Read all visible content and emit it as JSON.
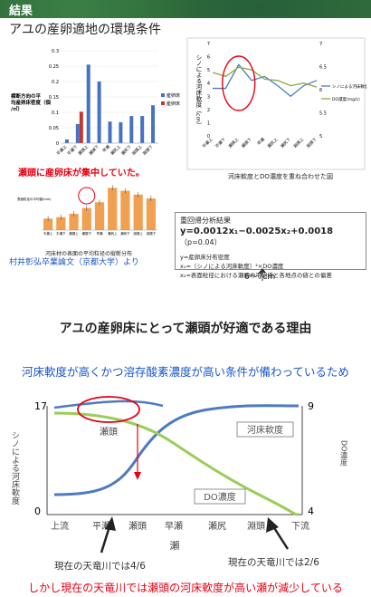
{
  "header": {
    "title": "結果"
  },
  "section1": {
    "title": "アユの産卵適地の環境条件"
  },
  "chart_data": [
    {
      "type": "bar",
      "ylabel": "横断方向の平均産卵床密度（個/㎡）",
      "ylim": [
        0,
        0.3
      ],
      "yticks": [
        "0",
        "0.05",
        "0.1",
        "0.15",
        "0.2",
        "0.25",
        "0.3"
      ],
      "categories": [
        "平瀬上",
        "平瀬下",
        "瀬頭上",
        "瀬頭下",
        "早瀬",
        "瀬尻上",
        "瀬尻下",
        "淵頭上",
        "淵頭下"
      ],
      "series": [
        {
          "name": "産卵床",
          "color": "#4472c4",
          "values": [
            0.012,
            0.062,
            0.255,
            0.2,
            0.07,
            0.068,
            0.088,
            0.088,
            0.123
          ]
        },
        {
          "name": "産卵床ｎ",
          "color": "#c0392b",
          "values": [
            0,
            0.102,
            0,
            0,
            0,
            0,
            0,
            0,
            0
          ]
        }
      ]
    },
    {
      "type": "line",
      "title": "河床軟度とDO濃度を重ね合わせた図",
      "ylabel": "シノによる河床軟度（cm）",
      "left_ticks": [
        "0",
        "1",
        "2",
        "3",
        "4",
        "5",
        "6",
        "7"
      ],
      "right_ticks": [
        "7",
        "6.5",
        "6",
        "5.5",
        "5"
      ],
      "categories": [
        "平瀬上",
        "平瀬下",
        "瀬頭上",
        "瀬頭下",
        "早瀬",
        "瀬尻上",
        "瀬尻下",
        "淵頭上",
        "淵頭下"
      ],
      "series": [
        {
          "name": "シノによる河床軟度",
          "color": "#4a7dbf",
          "values": [
            3.6,
            3.6,
            5.4,
            4.2,
            4.5,
            3.8,
            3.0,
            3.8,
            4.2
          ]
        },
        {
          "name": "DO濃度(mg/L)",
          "color": "#8aaa3e",
          "values": [
            4.8,
            4.5,
            5.2,
            5.0,
            4.3,
            4.2,
            3.8,
            4.0,
            3.7
          ]
        }
      ]
    },
    {
      "type": "bar",
      "title": "河床材の表面の平均粒径の縦断分布",
      "ylabel": "表面粒径の平均値(mm)",
      "categories": [
        "平瀬上",
        "平瀬下",
        "瀬頭上",
        "瀬頭下",
        "早瀬",
        "瀬尻上",
        "瀬尻下",
        "淵頭上",
        "淵頭下"
      ],
      "series": [
        {
          "name": "平均粒径",
          "color": "#f0a050",
          "values": [
            24,
            27,
            34,
            46,
            58,
            88,
            82,
            74,
            66
          ]
        }
      ]
    }
  ],
  "labels": {
    "red_concentration": "瀬頭に産卵床が集中していた。",
    "source": "村井彰弘卒業論文（京都大学）より",
    "ruler": "6～7cm"
  },
  "regression": {
    "title": "重回帰分析結果",
    "equation": "y=0.0012x₁−0.0025x₂+0.0018",
    "p": "（p=0.04）",
    "line1": "y=産卵床分布密度",
    "line2": "x₁=（シノによる河床軟度）²×DO濃度",
    "line3": "x₂=表面粒径における瀬頭の平均値と各地点の値との偏差"
  },
  "section2": {
    "title": "アユの産卵床にとって瀬頭が好適である理由",
    "reason": "河床軟度が高くかつ溶存酸素濃度が高い条件が備わっているため"
  },
  "diagram": {
    "left_label": "シノによる河床軟度",
    "left_top": "17",
    "left_bottom": "0",
    "right_label": "DO濃度",
    "right_top": "9",
    "right_bottom": "4",
    "x_labels": [
      "上流",
      "平瀬",
      "瀬頭",
      "早瀬",
      "瀬尻",
      "淵頭",
      "下流"
    ],
    "xaxis_title": "瀬",
    "circle_label": "瀬頭",
    "series_softness": "河床軟度",
    "series_do": "DO濃度",
    "current_left": "現在の天竜川では4/6",
    "current_right": "現在の天竜川では2/6",
    "bottom_note": "しかし現在の天竜川では瀬頭の河床軟度が高い瀬が減少している"
  },
  "colors": {
    "header": "#2f6b3a",
    "blue": "#1a57c8",
    "red": "#e60012",
    "softness": "#4e7bbf",
    "do": "#9acd5a"
  }
}
